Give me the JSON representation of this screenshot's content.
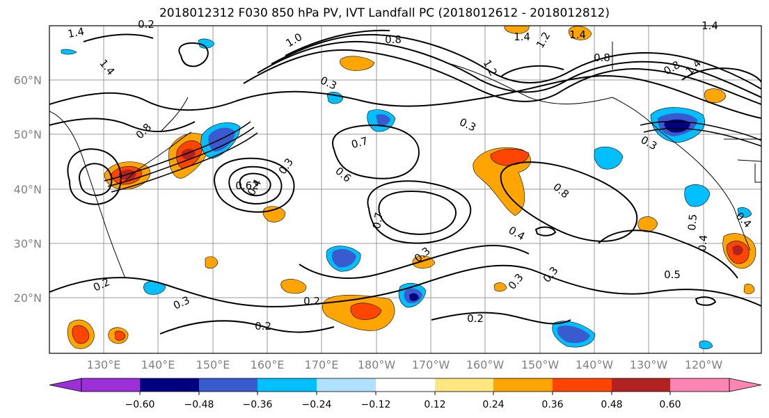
{
  "title": "2018012312 F030 850 hPa PV, IVT Landfall PC (2018012612 - 2018012812)",
  "map": {
    "lat_labels": [
      "60°N",
      "50°N",
      "40°N",
      "30°N",
      "20°N"
    ],
    "lon_labels": [
      "130°E",
      "140°E",
      "150°E",
      "160°E",
      "170°E",
      "180°W",
      "170°W",
      "160°W",
      "150°W",
      "140°W",
      "130°W",
      "120°W"
    ],
    "contour_labels": [
      "1.4",
      "1.0",
      "0.8",
      "1.4",
      "1.2",
      "1.4",
      "1.4",
      "0.8",
      "1.4",
      "0.3",
      "0.8",
      "0.3",
      "0.3",
      "0.7",
      "0.6",
      "0.3",
      "0.4",
      "0.62",
      "0.3",
      "0.7",
      "0.8",
      "0.4",
      "0.5",
      "0.4",
      "0.3",
      "0.3",
      "0.2",
      "0.3",
      "0.5",
      "0.2",
      "0.2",
      "0.2",
      "0.2",
      "1.2",
      "1.4",
      "0.8",
      "0.4"
    ]
  },
  "colorbar": {
    "ticks": [
      "−0.60",
      "−0.48",
      "−0.36",
      "−0.24",
      "−0.12",
      "0.12",
      "0.24",
      "0.36",
      "0.48",
      "0.60"
    ],
    "colors": [
      "#9b30d9",
      "#000080",
      "#3a5bcf",
      "#00bfff",
      "#b0e2ff",
      "#ffffff",
      "#ffe680",
      "#ffa500",
      "#ff4500",
      "#b22222",
      "#ff85b3"
    ]
  }
}
